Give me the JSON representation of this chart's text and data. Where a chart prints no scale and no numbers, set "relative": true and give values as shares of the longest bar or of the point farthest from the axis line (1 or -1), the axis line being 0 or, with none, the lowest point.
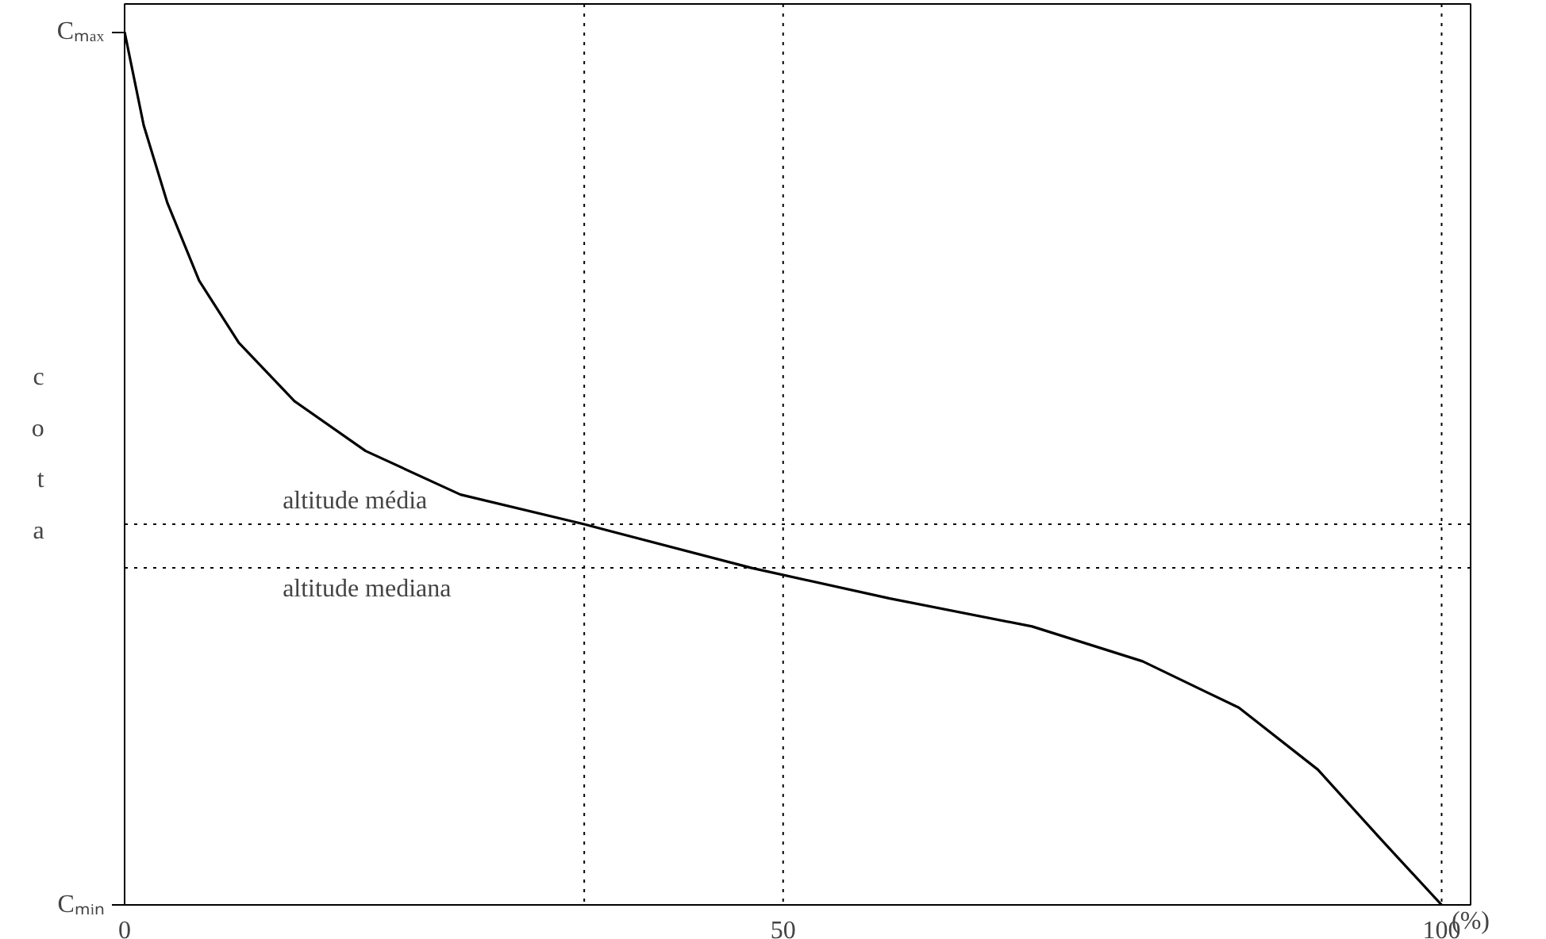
{
  "chart_data": {
    "type": "line",
    "relative": true,
    "xlabel": "(%)",
    "ylabel": "cota",
    "x": [
      0,
      1.45,
      3.25,
      5.66,
      8.67,
      12.9,
      18.3,
      25.5,
      34.9,
      47.6,
      58.1,
      68.9,
      77.3,
      84.6,
      90.6,
      95.4,
      100
    ],
    "series": [
      {
        "color": "#000000",
        "values": [
          1,
          0.893,
          0.804,
          0.715,
          0.644,
          0.577,
          0.52,
          0.47,
          0.436,
          0.386,
          0.351,
          0.319,
          0.279,
          0.226,
          0.155,
          0.075,
          0
        ]
      }
    ],
    "xlim": [
      0,
      102.2
    ],
    "xticks": [
      0,
      50,
      100
    ],
    "annotations": [
      "Cₘₐₓ",
      "Cₘᵢₙ"
    ],
    "ref_lines": [
      {
        "axis": "y",
        "value": 0.436,
        "label": "altitude média",
        "line_style": "dotted"
      },
      {
        "axis": "y",
        "value": 0.386,
        "label": "altitude mediana",
        "line_style": "dotted"
      },
      {
        "axis": "x",
        "value": 34.9,
        "line_style": "dotted"
      },
      {
        "axis": "x",
        "value": 50,
        "line_style": "dotted"
      },
      {
        "axis": "x",
        "value": 100,
        "line_style": "dotted"
      }
    ],
    "grid": false,
    "marker": "none",
    "line_style": "solid"
  }
}
